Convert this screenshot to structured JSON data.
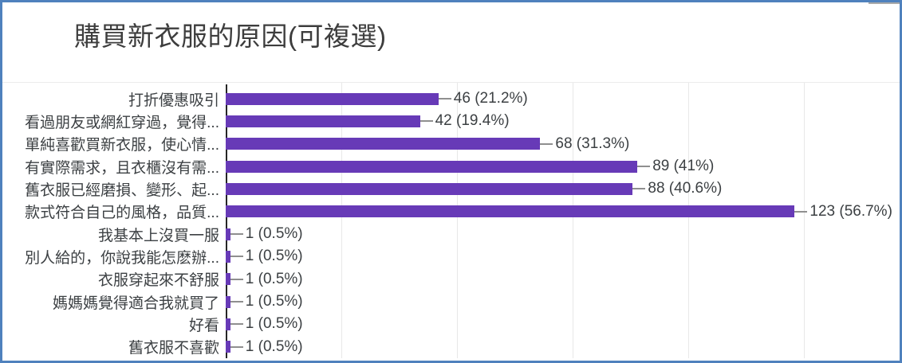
{
  "frame": {
    "border_color": "#4f81bd",
    "background_color": "#ffffff",
    "scrollbar_fragment_color": "#a9a9a9"
  },
  "chart_data": {
    "type": "bar",
    "orientation": "horizontal",
    "title": "購買新衣服的原因(可複選)",
    "xlabel": "",
    "ylabel": "",
    "xlim": [
      0,
      145
    ],
    "gridline_values": [
      25,
      50,
      75,
      100,
      125
    ],
    "grid": true,
    "legend": "none",
    "bar_color": "#673ab7",
    "axis_color": "#262626",
    "gridline_color": "#e8e8e8",
    "text_color": "#3c4043",
    "categories": [
      "打折優惠吸引",
      "看過朋友或網紅穿過，覺得...",
      "單純喜歡買新衣服，使心情...",
      "有實際需求，且衣櫃沒有需...",
      "舊衣服已經磨損、變形、起...",
      "款式符合自己的風格，品質...",
      "我基本上沒買一服",
      "別人給的，你說我能怎麽辦...",
      "衣服穿起來不舒服",
      "媽媽媽覺得適合我就買了",
      "好看",
      "舊衣服不喜歡"
    ],
    "values": [
      46,
      42,
      68,
      89,
      88,
      123,
      1,
      1,
      1,
      1,
      1,
      1
    ],
    "rows": [
      {
        "label": "打折優惠吸引",
        "value": 46,
        "pct": "21.2%",
        "value_label": "46 (21.2%)"
      },
      {
        "label": "看過朋友或網紅穿過，覺得...",
        "value": 42,
        "pct": "19.4%",
        "value_label": "42 (19.4%)"
      },
      {
        "label": "單純喜歡買新衣服，使心情...",
        "value": 68,
        "pct": "31.3%",
        "value_label": "68 (31.3%)"
      },
      {
        "label": "有實際需求，且衣櫃沒有需...",
        "value": 89,
        "pct": "41%",
        "value_label": "89 (41%)"
      },
      {
        "label": "舊衣服已經磨損、變形、起...",
        "value": 88,
        "pct": "40.6%",
        "value_label": "88 (40.6%)"
      },
      {
        "label": "款式符合自己的風格，品質...",
        "value": 123,
        "pct": "56.7%",
        "value_label": "123 (56.7%)"
      },
      {
        "label": "我基本上沒買一服",
        "value": 1,
        "pct": "0.5%",
        "value_label": "1 (0.5%)"
      },
      {
        "label": "別人給的，你說我能怎麽辦...",
        "value": 1,
        "pct": "0.5%",
        "value_label": "1 (0.5%)"
      },
      {
        "label": "衣服穿起來不舒服",
        "value": 1,
        "pct": "0.5%",
        "value_label": "1 (0.5%)"
      },
      {
        "label": "媽媽媽覺得適合我就買了",
        "value": 1,
        "pct": "0.5%",
        "value_label": "1 (0.5%)"
      },
      {
        "label": "好看",
        "value": 1,
        "pct": "0.5%",
        "value_label": "1 (0.5%)"
      },
      {
        "label": "舊衣服不喜歡",
        "value": 1,
        "pct": "0.5%",
        "value_label": "1 (0.5%)"
      }
    ]
  }
}
